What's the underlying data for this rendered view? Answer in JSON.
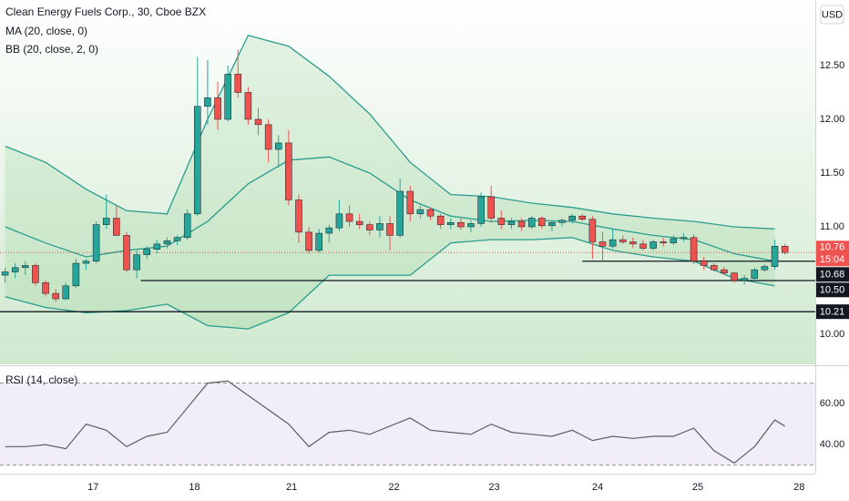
{
  "chart_data": [
    {
      "type": "candlestick",
      "title": "Clean Energy Fuels Corp., 30, Cboe BZX",
      "indicators": [
        "MA (20, close, 0)",
        "BB (20, close, 2, 0)"
      ],
      "currency": "USD",
      "countdown": "15:04",
      "up_color": "#26a69a",
      "down_color": "#ef5350",
      "open": [
        10.55,
        10.58,
        10.62,
        10.64,
        10.48,
        10.38,
        10.33,
        10.45,
        10.66,
        10.68,
        11.02,
        11.08,
        10.92,
        10.6,
        10.74,
        10.79,
        10.84,
        10.87,
        10.9,
        11.12,
        12.12,
        12.2,
        12.0,
        12.42,
        12.25,
        12.0,
        11.95,
        11.72,
        11.78,
        11.25,
        10.95,
        10.78,
        10.94,
        10.99,
        11.12,
        11.05,
        11.02,
        10.97,
        11.03,
        10.92,
        11.33,
        11.12,
        11.16,
        11.1,
        11.02,
        11.04,
        11.0,
        11.03,
        11.28,
        11.08,
        11.02,
        11.05,
        11.0,
        11.08,
        11.01,
        11.04,
        11.06,
        11.1,
        11.07,
        10.86,
        10.82,
        10.88,
        10.86,
        10.84,
        10.8,
        10.86,
        10.85,
        10.89,
        10.9,
        10.68,
        10.64,
        10.6,
        10.57,
        10.5,
        10.52,
        10.6,
        10.63,
        10.82
      ],
      "high": [
        10.62,
        10.66,
        10.68,
        10.66,
        10.5,
        10.42,
        10.48,
        10.7,
        10.7,
        11.05,
        11.3,
        11.2,
        10.95,
        10.78,
        10.82,
        10.88,
        10.9,
        10.92,
        11.16,
        12.58,
        12.55,
        12.35,
        12.5,
        12.65,
        12.3,
        12.1,
        12.0,
        11.85,
        11.9,
        11.3,
        11.0,
        10.98,
        11.02,
        11.25,
        11.2,
        11.12,
        11.05,
        11.1,
        11.1,
        11.45,
        11.38,
        11.2,
        11.18,
        11.12,
        11.08,
        11.08,
        11.06,
        11.32,
        11.38,
        11.15,
        11.08,
        11.08,
        11.1,
        11.1,
        11.05,
        11.08,
        11.12,
        11.12,
        11.1,
        10.95,
        10.98,
        10.92,
        10.9,
        10.88,
        10.88,
        10.9,
        10.92,
        10.94,
        10.93,
        10.72,
        10.66,
        10.63,
        10.58,
        10.55,
        10.62,
        10.65,
        10.88,
        10.84
      ],
      "low": [
        10.48,
        10.52,
        10.55,
        10.45,
        10.35,
        10.3,
        10.32,
        10.43,
        10.6,
        10.66,
        10.98,
        10.95,
        10.58,
        10.52,
        10.7,
        10.75,
        10.8,
        10.83,
        10.88,
        11.1,
        11.95,
        11.9,
        11.98,
        12.2,
        11.95,
        11.85,
        11.6,
        11.55,
        11.2,
        10.85,
        10.75,
        10.76,
        10.85,
        10.96,
        11.0,
        10.98,
        10.92,
        10.9,
        10.78,
        10.9,
        11.05,
        11.08,
        11.06,
        10.98,
        10.98,
        10.97,
        10.95,
        11.0,
        11.04,
        10.98,
        10.98,
        10.96,
        10.98,
        10.98,
        10.96,
        11.0,
        11.03,
        11.05,
        10.7,
        10.68,
        10.8,
        10.84,
        10.8,
        10.78,
        10.78,
        10.82,
        10.83,
        10.86,
        10.65,
        10.6,
        10.58,
        10.55,
        10.48,
        10.46,
        10.5,
        10.58,
        10.6,
        10.74
      ],
      "close": [
        10.58,
        10.62,
        10.64,
        10.48,
        10.38,
        10.33,
        10.45,
        10.66,
        10.68,
        11.02,
        11.08,
        10.92,
        10.6,
        10.74,
        10.79,
        10.84,
        10.87,
        10.9,
        11.12,
        12.12,
        12.2,
        12.0,
        12.42,
        12.25,
        12.0,
        11.95,
        11.72,
        11.78,
        11.25,
        10.95,
        10.78,
        10.94,
        10.99,
        11.12,
        11.05,
        11.02,
        10.97,
        11.03,
        10.92,
        11.33,
        11.12,
        11.16,
        11.1,
        11.02,
        11.04,
        11.0,
        11.03,
        11.28,
        11.08,
        11.02,
        11.05,
        11.0,
        11.08,
        11.01,
        11.04,
        11.06,
        11.1,
        11.07,
        10.86,
        10.82,
        10.88,
        10.86,
        10.84,
        10.8,
        10.86,
        10.85,
        10.89,
        10.9,
        10.68,
        10.64,
        10.6,
        10.57,
        10.5,
        10.52,
        10.6,
        10.63,
        10.82,
        10.76
      ],
      "bands": {
        "color": "#2a9d8f",
        "x": [
          0,
          4,
          8,
          12,
          16,
          20,
          24,
          28,
          32,
          36,
          40,
          44,
          48,
          52,
          56,
          60,
          64,
          68,
          72,
          76
        ],
        "upper": [
          11.75,
          11.6,
          11.35,
          11.15,
          11.12,
          12.0,
          12.78,
          12.68,
          12.4,
          12.05,
          11.6,
          11.3,
          11.28,
          11.22,
          11.18,
          11.12,
          11.08,
          11.05,
          11.0,
          10.98
        ],
        "basis": [
          11.0,
          10.85,
          10.72,
          10.78,
          10.82,
          11.05,
          11.4,
          11.62,
          11.65,
          11.5,
          11.25,
          11.1,
          11.05,
          11.06,
          11.05,
          10.98,
          10.92,
          10.88,
          10.75,
          10.68
        ],
        "lower": [
          10.35,
          10.25,
          10.2,
          10.22,
          10.28,
          10.08,
          10.05,
          10.2,
          10.55,
          10.55,
          10.55,
          10.85,
          10.88,
          10.88,
          10.9,
          10.78,
          10.72,
          10.68,
          10.52,
          10.45
        ]
      },
      "hlines": [
        {
          "value": 10.68,
          "label": "10.68",
          "start": 57
        },
        {
          "value": 10.5,
          "label": "10.50",
          "start": 13.4
        },
        {
          "value": 10.21,
          "label": "10.21",
          "start": -0.5
        }
      ],
      "xlim": [
        -0.5,
        80
      ],
      "ylim": [
        9.72,
        13.11
      ],
      "yticks": [
        {
          "value": 10,
          "label": "10.00"
        },
        {
          "value": 11,
          "label": "11.00"
        },
        {
          "value": 11.5,
          "label": "11.50"
        },
        {
          "value": 12,
          "label": "12.00"
        },
        {
          "value": 12.5,
          "label": "12.50"
        }
      ]
    },
    {
      "type": "line",
      "title": "RSI (14, close)",
      "color": "#5f5f5f",
      "x": [
        0,
        2,
        4,
        6,
        8,
        10,
        12,
        14,
        16,
        18,
        20,
        22,
        24,
        26,
        28,
        30,
        32,
        34,
        36,
        38,
        40,
        42,
        44,
        46,
        48,
        50,
        52,
        54,
        56,
        58,
        60,
        62,
        64,
        66,
        68,
        70,
        72,
        74,
        76,
        77
      ],
      "values": [
        39,
        39,
        40,
        38,
        50,
        47,
        39,
        44,
        46,
        58,
        70,
        71,
        64,
        57,
        50,
        39,
        46,
        47,
        45,
        49,
        53,
        47,
        46,
        45,
        50,
        46,
        45,
        44,
        47,
        42,
        44,
        43,
        44,
        44,
        48,
        37,
        31,
        39,
        52,
        49
      ],
      "levels": [
        30,
        70
      ],
      "xlim": [
        -0.5,
        80
      ],
      "ylim": [
        25.8,
        77.8
      ],
      "yticks": [
        {
          "value": 40,
          "label": "40.00"
        },
        {
          "value": 60,
          "label": "60.00"
        }
      ],
      "xticks": [
        {
          "value": 8.7,
          "label": "17"
        },
        {
          "value": 18.7,
          "label": "18"
        },
        {
          "value": 28.3,
          "label": "21"
        },
        {
          "value": 38.4,
          "label": "22"
        },
        {
          "value": 48.3,
          "label": "23"
        },
        {
          "value": 58.5,
          "label": "24"
        },
        {
          "value": 68.4,
          "label": "25"
        },
        {
          "value": 78.4,
          "label": "28"
        }
      ]
    }
  ]
}
